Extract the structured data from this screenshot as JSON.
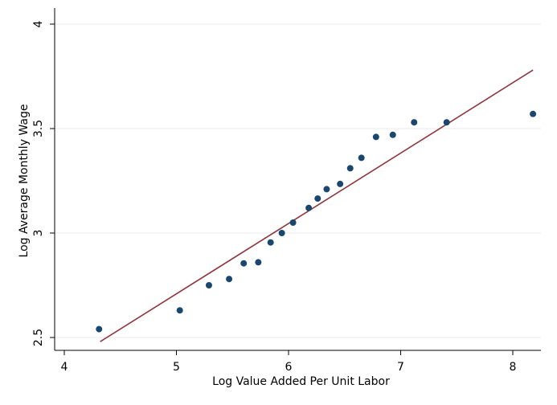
{
  "chart_data": {
    "type": "scatter",
    "title": "",
    "xlabel": "Log Value Added Per Unit Labor",
    "ylabel": "Log Average Monthly Wage",
    "xlim": [
      4,
      8.25
    ],
    "ylim": [
      2.5,
      4
    ],
    "xticks": [
      "4",
      "5",
      "6",
      "7",
      "8"
    ],
    "yticks": [
      "2.5",
      "3",
      "3.5",
      "4"
    ],
    "grid": "horizontal",
    "legend": "none",
    "colors": {
      "points": "#1a476f",
      "fit_line": "#90353b",
      "grid": "#eaeaea"
    },
    "series": [
      {
        "type": "scatter",
        "x": [
          4.31,
          5.03,
          5.29,
          5.47,
          5.6,
          5.73,
          5.84,
          5.94,
          6.04,
          6.18,
          6.26,
          6.34,
          6.46,
          6.55,
          6.65,
          6.78,
          6.93,
          7.12,
          7.41,
          8.18
        ],
        "y": [
          2.54,
          2.63,
          2.75,
          2.78,
          2.855,
          2.86,
          2.955,
          3.0,
          3.05,
          3.12,
          3.165,
          3.21,
          3.235,
          3.31,
          3.36,
          3.46,
          3.47,
          3.53,
          3.53,
          3.57
        ]
      },
      {
        "type": "line",
        "x": [
          4.32,
          8.18
        ],
        "y": [
          2.48,
          3.78
        ]
      }
    ]
  }
}
